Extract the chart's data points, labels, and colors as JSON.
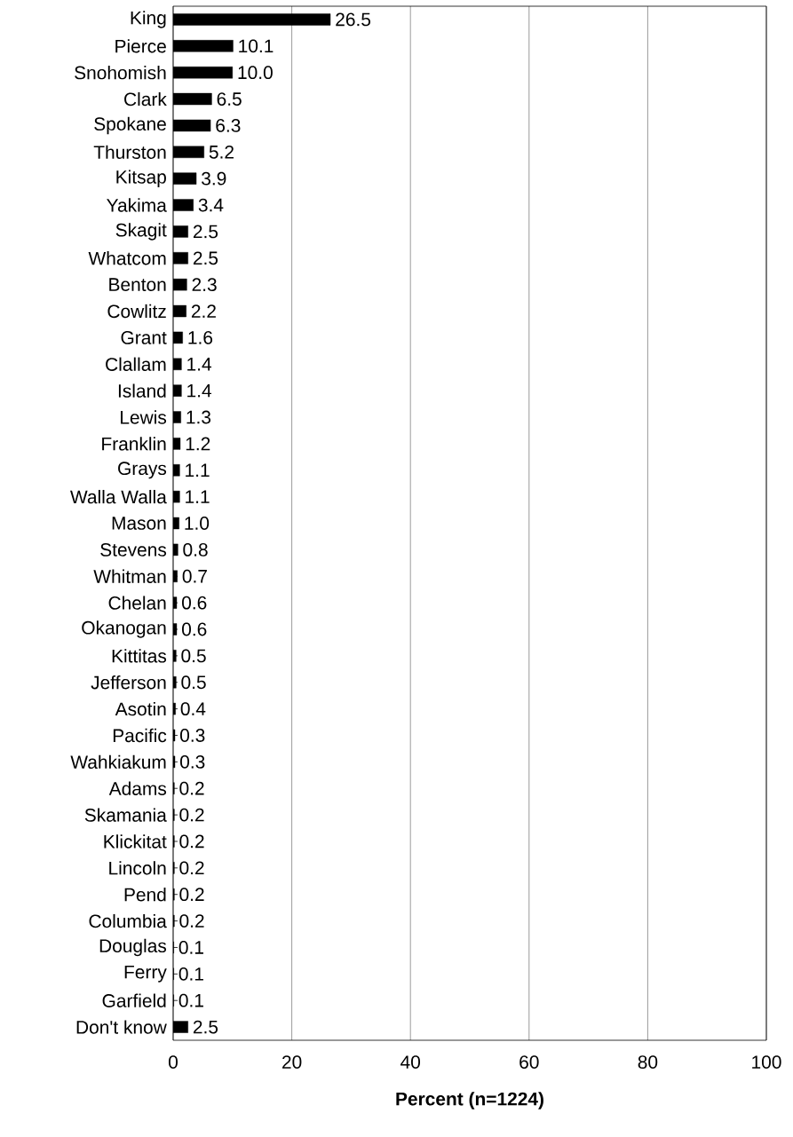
{
  "chart_data": {
    "type": "bar",
    "orientation": "horizontal",
    "xlabel": "Percent (n=1224)",
    "categories": [
      "King",
      "Pierce",
      "Snohomish",
      "Clark",
      "Spokane",
      "Thurston",
      "Kitsap",
      "Yakima",
      "Skagit",
      "Whatcom",
      "Benton",
      "Cowlitz",
      "Grant",
      "Clallam",
      "Island",
      "Lewis",
      "Franklin",
      "Grays",
      "Walla Walla",
      "Mason",
      "Stevens",
      "Whitman",
      "Chelan",
      "Okanogan",
      "Kittitas",
      "Jefferson",
      "Asotin",
      "Pacific",
      "Wahkiakum",
      "Adams",
      "Skamania",
      "Klickitat",
      "Lincoln",
      "Pend",
      "Columbia",
      "Douglas",
      "Ferry",
      "Garfield",
      "Don't know"
    ],
    "values": [
      26.5,
      10.1,
      10.0,
      6.5,
      6.3,
      5.2,
      3.9,
      3.4,
      2.5,
      2.5,
      2.3,
      2.2,
      1.6,
      1.4,
      1.4,
      1.3,
      1.2,
      1.1,
      1.1,
      1.0,
      0.8,
      0.7,
      0.6,
      0.6,
      0.5,
      0.5,
      0.4,
      0.3,
      0.3,
      0.2,
      0.2,
      0.2,
      0.2,
      0.2,
      0.2,
      0.1,
      0.1,
      0.1,
      2.5
    ],
    "value_labels": [
      "26.5",
      "10.1",
      "10.0",
      "6.5",
      "6.3",
      "5.2",
      "3.9",
      "3.4",
      "2.5",
      "2.5",
      "2.3",
      "2.2",
      "1.6",
      "1.4",
      "1.4",
      "1.3",
      "1.2",
      "1.1",
      "1.1",
      "1.0",
      "0.8",
      "0.7",
      "0.6",
      "0.6",
      "0.5",
      "0.5",
      "0.4",
      "0.3",
      "0.3",
      "0.2",
      "0.2",
      "0.2",
      "0.2",
      "0.2",
      "0.2",
      "0.1",
      "0.1",
      "0.1",
      "2.5"
    ],
    "color": "#000000",
    "xlim": [
      0,
      100
    ],
    "xticks": [
      0,
      20,
      40,
      60,
      80,
      100
    ],
    "grid": "x"
  }
}
